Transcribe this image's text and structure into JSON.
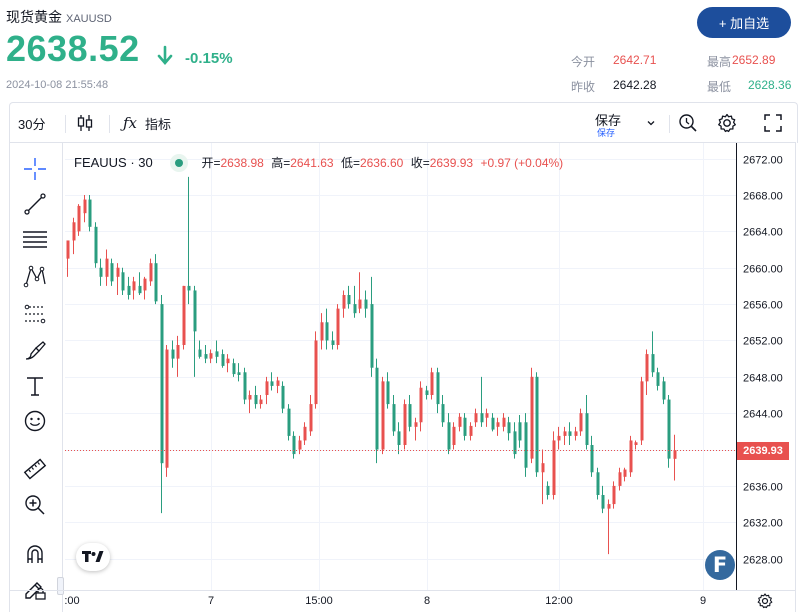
{
  "header": {
    "title": "现货黄金",
    "symbol_code": "XAUUSD",
    "price": "2638.52",
    "change_pct": "-0.15%",
    "timestamp": "2024-10-08 21:55:48",
    "add_button": "+ 加自选",
    "stats": [
      {
        "label": "今开",
        "value": "2642.71",
        "color": "#e8514f"
      },
      {
        "label": "最高",
        "value": "2652.89",
        "color": "#e8514f"
      },
      {
        "label": "昨收",
        "value": "2642.28",
        "color": "#131722"
      },
      {
        "label": "最低",
        "value": "2628.36",
        "color": "#2fb08a"
      }
    ]
  },
  "toolbar": {
    "interval": "30分",
    "indicators": "指标",
    "save": "保存",
    "save_sub": "保存"
  },
  "legend": {
    "symbol": "FEAUUS · 30",
    "open_label": "开=",
    "open": "2638.98",
    "high_label": "高=",
    "high": "2641.63",
    "low_label": "低=",
    "low": "2636.60",
    "close_label": "收=",
    "close": "2639.93",
    "change": "+0.97 (+0.04%)"
  },
  "colors": {
    "up": "#e8514f",
    "down": "#2a9d7f",
    "accent": "#2962ff",
    "brand": "#1d4e9c"
  },
  "icons": [
    "crosshair-icon",
    "trendline-icon",
    "horizontal-lines-icon",
    "pattern-icon",
    "fib-icon",
    "brush-icon",
    "text-icon",
    "emoji-icon",
    "ruler-icon",
    "zoom-in-icon",
    "magnet-icon",
    "lock-pencil-icon"
  ],
  "chart_data": {
    "type": "candlestick",
    "y_ticks": [
      "2672.00",
      "2668.00",
      "2664.00",
      "2660.00",
      "2656.00",
      "2652.00",
      "2648.00",
      "2644.00",
      "2640.00",
      "2636.00",
      "2632.00",
      "2628.00"
    ],
    "ylim": [
      2626.2,
      2673.5
    ],
    "x_ticks": [
      ":00",
      "7",
      "15:00",
      "8",
      "12:00",
      "9"
    ],
    "last_price": "2639.93",
    "candles": [
      {
        "o": 2661,
        "h": 2663,
        "l": 2659,
        "c": 2663
      },
      {
        "o": 2663,
        "h": 2665.5,
        "l": 2661.5,
        "c": 2665
      },
      {
        "o": 2664,
        "h": 2667,
        "l": 2663.5,
        "c": 2666.8
      },
      {
        "o": 2666,
        "h": 2668,
        "l": 2665,
        "c": 2667.5
      },
      {
        "o": 2667.5,
        "h": 2668,
        "l": 2664,
        "c": 2664.5
      },
      {
        "o": 2664.5,
        "h": 2665,
        "l": 2660,
        "c": 2660.5
      },
      {
        "o": 2660,
        "h": 2661,
        "l": 2658,
        "c": 2659
      },
      {
        "o": 2659,
        "h": 2662,
        "l": 2658,
        "c": 2661
      },
      {
        "o": 2660.5,
        "h": 2661,
        "l": 2658,
        "c": 2658.5
      },
      {
        "o": 2659,
        "h": 2660.5,
        "l": 2657,
        "c": 2660
      },
      {
        "o": 2659.5,
        "h": 2660,
        "l": 2657,
        "c": 2657.5
      },
      {
        "o": 2658,
        "h": 2659,
        "l": 2656.5,
        "c": 2657
      },
      {
        "o": 2657.5,
        "h": 2659,
        "l": 2656.5,
        "c": 2658.5
      },
      {
        "o": 2658,
        "h": 2659.5,
        "l": 2657,
        "c": 2657.2
      },
      {
        "o": 2657.5,
        "h": 2659,
        "l": 2656.5,
        "c": 2658.8
      },
      {
        "o": 2658.5,
        "h": 2661,
        "l": 2658,
        "c": 2660.5
      },
      {
        "o": 2660.5,
        "h": 2661.5,
        "l": 2656,
        "c": 2656.3
      },
      {
        "o": 2656,
        "h": 2657,
        "l": 2633,
        "c": 2638.5
      },
      {
        "o": 2638,
        "h": 2651.5,
        "l": 2637,
        "c": 2651
      },
      {
        "o": 2651,
        "h": 2652,
        "l": 2649,
        "c": 2650
      },
      {
        "o": 2650,
        "h": 2652.5,
        "l": 2648,
        "c": 2651.5
      },
      {
        "o": 2651.5,
        "h": 2658,
        "l": 2651,
        "c": 2658
      },
      {
        "o": 2658,
        "h": 2670,
        "l": 2656,
        "c": 2657.5
      },
      {
        "o": 2657.5,
        "h": 2658,
        "l": 2648,
        "c": 2653
      },
      {
        "o": 2651,
        "h": 2652,
        "l": 2650,
        "c": 2650.2
      },
      {
        "o": 2650.5,
        "h": 2651.5,
        "l": 2649.5,
        "c": 2650
      },
      {
        "o": 2650,
        "h": 2651,
        "l": 2649.5,
        "c": 2650.6
      },
      {
        "o": 2650.8,
        "h": 2652,
        "l": 2649.5,
        "c": 2650.2
      },
      {
        "o": 2650.5,
        "h": 2651,
        "l": 2649,
        "c": 2649.2
      },
      {
        "o": 2649.5,
        "h": 2650.5,
        "l": 2648.5,
        "c": 2650
      },
      {
        "o": 2649.5,
        "h": 2650,
        "l": 2648,
        "c": 2648.3
      },
      {
        "o": 2648.5,
        "h": 2649.5,
        "l": 2647.5,
        "c": 2648.2
      },
      {
        "o": 2648.5,
        "h": 2649,
        "l": 2645,
        "c": 2645.5
      },
      {
        "o": 2645.5,
        "h": 2646.5,
        "l": 2644,
        "c": 2646
      },
      {
        "o": 2646,
        "h": 2647,
        "l": 2644.5,
        "c": 2645
      },
      {
        "o": 2645,
        "h": 2646,
        "l": 2644.5,
        "c": 2645.5
      },
      {
        "o": 2646,
        "h": 2648,
        "l": 2645,
        "c": 2647.5
      },
      {
        "o": 2647.5,
        "h": 2648.5,
        "l": 2646.5,
        "c": 2647
      },
      {
        "o": 2647,
        "h": 2648,
        "l": 2646.2,
        "c": 2647.6
      },
      {
        "o": 2647,
        "h": 2647.5,
        "l": 2644,
        "c": 2644.5
      },
      {
        "o": 2644.5,
        "h": 2645,
        "l": 2641,
        "c": 2641.5
      },
      {
        "o": 2641.5,
        "h": 2642,
        "l": 2639,
        "c": 2639.5
      },
      {
        "o": 2640,
        "h": 2641.5,
        "l": 2639.5,
        "c": 2641
      },
      {
        "o": 2641,
        "h": 2643,
        "l": 2640.5,
        "c": 2642.5
      },
      {
        "o": 2642,
        "h": 2646,
        "l": 2641.5,
        "c": 2645
      },
      {
        "o": 2645,
        "h": 2653,
        "l": 2644.5,
        "c": 2652
      },
      {
        "o": 2652,
        "h": 2655,
        "l": 2651,
        "c": 2654
      },
      {
        "o": 2654,
        "h": 2655.5,
        "l": 2651,
        "c": 2652
      },
      {
        "o": 2652,
        "h": 2653,
        "l": 2651,
        "c": 2651.5
      },
      {
        "o": 2651.5,
        "h": 2656,
        "l": 2651,
        "c": 2655.5
      },
      {
        "o": 2655.5,
        "h": 2657.5,
        "l": 2654.5,
        "c": 2657
      },
      {
        "o": 2657,
        "h": 2658,
        "l": 2655.5,
        "c": 2656
      },
      {
        "o": 2656,
        "h": 2658,
        "l": 2654.5,
        "c": 2655
      },
      {
        "o": 2655.5,
        "h": 2659.5,
        "l": 2655,
        "c": 2656.5
      },
      {
        "o": 2656.5,
        "h": 2657.5,
        "l": 2654.5,
        "c": 2655.5
      },
      {
        "o": 2656,
        "h": 2659,
        "l": 2648,
        "c": 2649
      },
      {
        "o": 2649,
        "h": 2650,
        "l": 2638.5,
        "c": 2640
      },
      {
        "o": 2640,
        "h": 2648,
        "l": 2639.5,
        "c": 2647.5
      },
      {
        "o": 2647.5,
        "h": 2648.5,
        "l": 2644.5,
        "c": 2645
      },
      {
        "o": 2645,
        "h": 2646,
        "l": 2641.5,
        "c": 2642
      },
      {
        "o": 2642,
        "h": 2643,
        "l": 2639.5,
        "c": 2640.5
      },
      {
        "o": 2640.5,
        "h": 2645.5,
        "l": 2640,
        "c": 2645
      },
      {
        "o": 2645,
        "h": 2646,
        "l": 2642,
        "c": 2642.5
      },
      {
        "o": 2642.5,
        "h": 2643.5,
        "l": 2641,
        "c": 2643
      },
      {
        "o": 2643,
        "h": 2647.5,
        "l": 2642,
        "c": 2646.8
      },
      {
        "o": 2646.5,
        "h": 2647,
        "l": 2645.5,
        "c": 2646
      },
      {
        "o": 2646,
        "h": 2649,
        "l": 2645.5,
        "c": 2648.5
      },
      {
        "o": 2648.5,
        "h": 2649,
        "l": 2644,
        "c": 2645
      },
      {
        "o": 2645,
        "h": 2646,
        "l": 2642.5,
        "c": 2643
      },
      {
        "o": 2643,
        "h": 2644,
        "l": 2639.5,
        "c": 2640
      },
      {
        "o": 2640.5,
        "h": 2643,
        "l": 2640,
        "c": 2642.5
      },
      {
        "o": 2642.5,
        "h": 2644,
        "l": 2642,
        "c": 2643.6
      },
      {
        "o": 2643.5,
        "h": 2644,
        "l": 2641,
        "c": 2641.5
      },
      {
        "o": 2641.5,
        "h": 2643,
        "l": 2641,
        "c": 2642.6
      },
      {
        "o": 2643,
        "h": 2644.5,
        "l": 2642.5,
        "c": 2644
      },
      {
        "o": 2644,
        "h": 2648,
        "l": 2642.5,
        "c": 2643
      },
      {
        "o": 2643.5,
        "h": 2644.5,
        "l": 2642.5,
        "c": 2644
      },
      {
        "o": 2643.5,
        "h": 2644,
        "l": 2642,
        "c": 2642.2
      },
      {
        "o": 2642.5,
        "h": 2643.5,
        "l": 2641.5,
        "c": 2643
      },
      {
        "o": 2642.5,
        "h": 2644,
        "l": 2642,
        "c": 2643.5
      },
      {
        "o": 2643,
        "h": 2643.6,
        "l": 2641,
        "c": 2641.8
      },
      {
        "o": 2642,
        "h": 2643,
        "l": 2639,
        "c": 2639.5
      },
      {
        "o": 2643,
        "h": 2643.8,
        "l": 2640.2,
        "c": 2641
      },
      {
        "o": 2643,
        "h": 2644,
        "l": 2637,
        "c": 2638
      },
      {
        "o": 2639,
        "h": 2649,
        "l": 2638.5,
        "c": 2648
      },
      {
        "o": 2648,
        "h": 2648.5,
        "l": 2637,
        "c": 2637.5
      },
      {
        "o": 2637.5,
        "h": 2640,
        "l": 2634,
        "c": 2638.5
      },
      {
        "o": 2636,
        "h": 2636.5,
        "l": 2634.5,
        "c": 2635
      },
      {
        "o": 2635,
        "h": 2642,
        "l": 2634.5,
        "c": 2641
      },
      {
        "o": 2641,
        "h": 2642.5,
        "l": 2640,
        "c": 2641.5
      },
      {
        "o": 2641.5,
        "h": 2642.5,
        "l": 2640.5,
        "c": 2642
      },
      {
        "o": 2642,
        "h": 2643,
        "l": 2640.5,
        "c": 2641.5
      },
      {
        "o": 2641.5,
        "h": 2642.5,
        "l": 2641,
        "c": 2642
      },
      {
        "o": 2642,
        "h": 2644.5,
        "l": 2641.5,
        "c": 2644
      },
      {
        "o": 2644,
        "h": 2646,
        "l": 2640,
        "c": 2640.5
      },
      {
        "o": 2640.5,
        "h": 2641.5,
        "l": 2637,
        "c": 2637.5
      },
      {
        "o": 2637.5,
        "h": 2638,
        "l": 2634.5,
        "c": 2635
      },
      {
        "o": 2635,
        "h": 2636,
        "l": 2633,
        "c": 2633.5
      },
      {
        "o": 2633.5,
        "h": 2634.5,
        "l": 2628.5,
        "c": 2634
      },
      {
        "o": 2634,
        "h": 2636.5,
        "l": 2633.5,
        "c": 2636
      },
      {
        "o": 2636,
        "h": 2638,
        "l": 2635.5,
        "c": 2637.5
      },
      {
        "o": 2637,
        "h": 2638,
        "l": 2636.5,
        "c": 2637.8
      },
      {
        "o": 2637.5,
        "h": 2641.5,
        "l": 2637,
        "c": 2641
      },
      {
        "o": 2640.5,
        "h": 2641,
        "l": 2640,
        "c": 2640.8
      },
      {
        "o": 2641,
        "h": 2648,
        "l": 2640.5,
        "c": 2647.5
      },
      {
        "o": 2647.5,
        "h": 2651,
        "l": 2646,
        "c": 2650.5
      },
      {
        "o": 2650.5,
        "h": 2653,
        "l": 2648,
        "c": 2648.5
      },
      {
        "o": 2648.5,
        "h": 2649,
        "l": 2646.5,
        "c": 2647
      },
      {
        "o": 2647.5,
        "h": 2648,
        "l": 2645,
        "c": 2645.5
      },
      {
        "o": 2645.5,
        "h": 2646,
        "l": 2638,
        "c": 2639
      },
      {
        "o": 2638.98,
        "h": 2641.63,
        "l": 2636.6,
        "c": 2639.93
      }
    ]
  }
}
